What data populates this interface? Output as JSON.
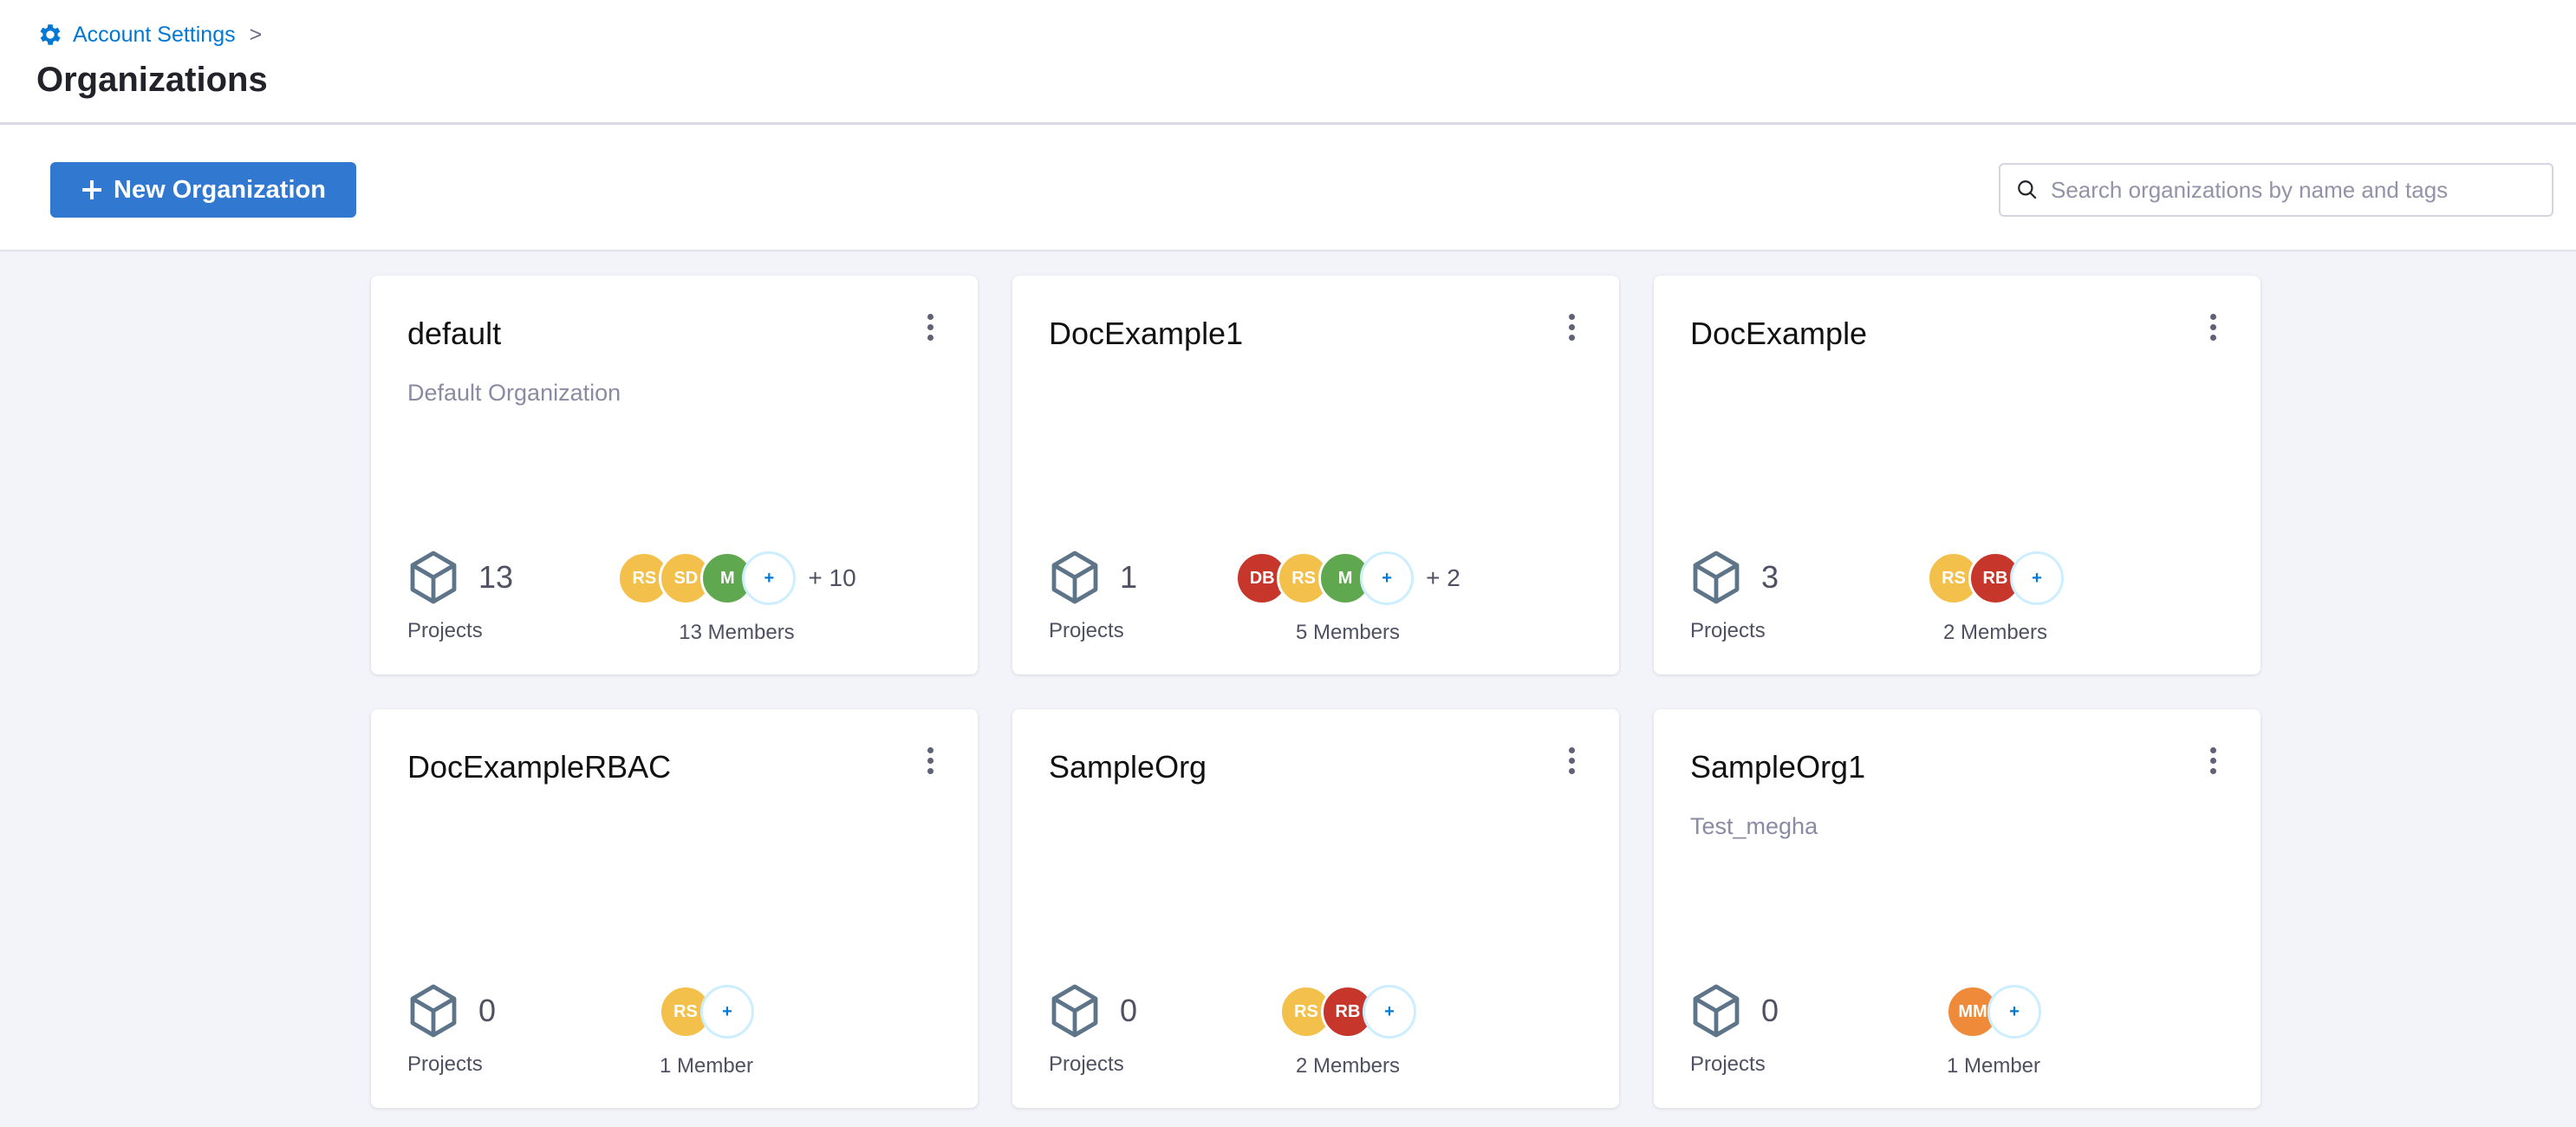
{
  "breadcrumb": {
    "label": "Account Settings",
    "separator": ">"
  },
  "page_title": "Organizations",
  "toolbar": {
    "new_label": "New Organization",
    "search_placeholder": "Search organizations by name and tags"
  },
  "colors": {
    "accent": "#3178d0",
    "yellow": "#f3c14b",
    "green": "#5fa84f",
    "red": "#c6362b",
    "orange": "#ef8a3a"
  },
  "organizations": [
    {
      "name": "default",
      "description": "Default Organization",
      "projects": "13",
      "projects_label": "Projects",
      "avatars": [
        {
          "initials": "RS",
          "color": "#f3c14b"
        },
        {
          "initials": "SD",
          "color": "#f3c14b"
        },
        {
          "initials": "M",
          "color": "#5fa84f"
        }
      ],
      "extra": "+ 10",
      "members_label": "13 Members"
    },
    {
      "name": "DocExample1",
      "description": "",
      "projects": "1",
      "projects_label": "Projects",
      "avatars": [
        {
          "initials": "DB",
          "color": "#c6362b"
        },
        {
          "initials": "RS",
          "color": "#f3c14b"
        },
        {
          "initials": "M",
          "color": "#5fa84f"
        }
      ],
      "extra": "+ 2",
      "members_label": "5 Members"
    },
    {
      "name": "DocExample",
      "description": "",
      "projects": "3",
      "projects_label": "Projects",
      "avatars": [
        {
          "initials": "RS",
          "color": "#f3c14b"
        },
        {
          "initials": "RB",
          "color": "#c6362b"
        }
      ],
      "extra": "",
      "members_label": "2 Members"
    },
    {
      "name": "DocExampleRBAC",
      "description": "",
      "projects": "0",
      "projects_label": "Projects",
      "avatars": [
        {
          "initials": "RS",
          "color": "#f3c14b"
        }
      ],
      "extra": "",
      "members_label": "1 Member"
    },
    {
      "name": "SampleOrg",
      "description": "",
      "projects": "0",
      "projects_label": "Projects",
      "avatars": [
        {
          "initials": "RS",
          "color": "#f3c14b"
        },
        {
          "initials": "RB",
          "color": "#c6362b"
        }
      ],
      "extra": "",
      "members_label": "2 Members"
    },
    {
      "name": "SampleOrg1",
      "description": "Test_megha",
      "projects": "0",
      "projects_label": "Projects",
      "avatars": [
        {
          "initials": "MM",
          "color": "#ef8a3a"
        }
      ],
      "extra": "",
      "members_label": "1 Member"
    }
  ],
  "add_member_symbol": "+"
}
